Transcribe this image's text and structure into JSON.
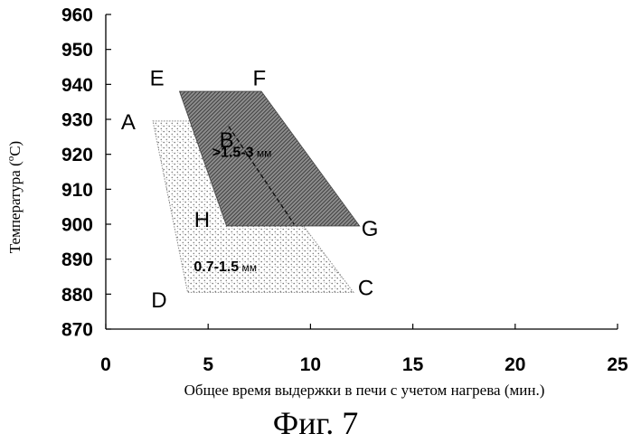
{
  "chart_data": {
    "type": "area",
    "xlabel": "Общее время выдержки в печи с учетом нагрева (мин.)",
    "ylabel": "Температура (°C)",
    "ylabel_main": "Температура (",
    "ylabel_sup": "o",
    "ylabel_unit": "C)",
    "xlim": [
      0,
      25
    ],
    "ylim": [
      870,
      960
    ],
    "x_ticks": [
      0,
      5,
      10,
      15,
      20,
      25
    ],
    "y_ticks": [
      870,
      880,
      890,
      900,
      910,
      920,
      930,
      940,
      950,
      960
    ],
    "grid": false,
    "regions": [
      {
        "name": "0.7-1.5 мм",
        "label_main": "0.7-1.5",
        "label_unit": " мм",
        "pattern": "dots",
        "points": [
          [
            2.3,
            929.5
          ],
          [
            5.8,
            929.5
          ],
          [
            12.1,
            880.5
          ],
          [
            4.0,
            880.5
          ]
        ],
        "label_at": [
          4.3,
          886.5
        ]
      },
      {
        "name": ">1.5-3 мм",
        "label_main": ">1.5-3",
        "label_unit": " мм",
        "pattern": "hatch",
        "points": [
          [
            3.6,
            938
          ],
          [
            7.6,
            938
          ],
          [
            12.4,
            899.5
          ],
          [
            5.9,
            899.5
          ]
        ],
        "label_at": [
          5.2,
          919.3
        ]
      }
    ],
    "dashed_line": [
      [
        6.0,
        928
      ],
      [
        9.2,
        900
      ]
    ],
    "points": [
      {
        "label": "A",
        "x": 1.1,
        "y": 929.5
      },
      {
        "label": "B",
        "x": 5.9,
        "y": 924.3
      },
      {
        "label": "C",
        "x": 12.7,
        "y": 882
      },
      {
        "label": "D",
        "x": 2.6,
        "y": 878.5
      },
      {
        "label": "E",
        "x": 2.5,
        "y": 942
      },
      {
        "label": "F",
        "x": 7.5,
        "y": 942
      },
      {
        "label": "G",
        "x": 12.9,
        "y": 899
      },
      {
        "label": "H",
        "x": 4.7,
        "y": 901.5
      }
    ]
  },
  "figure_caption": "Фиг. 7"
}
